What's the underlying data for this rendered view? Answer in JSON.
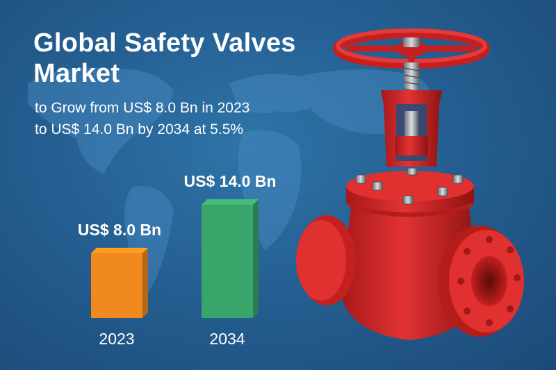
{
  "title_lines": [
    "Global Safety Valves",
    "Market"
  ],
  "subtitle_lines": [
    "to Grow from US$ 8.0 Bn in 2023",
    "to US$ 14.0 Bn by 2034 at 5.5%"
  ],
  "colors": {
    "background": "#255f92",
    "bar_2023": "#f0891e",
    "bar_2034": "#3aa56a",
    "valve": "#d42626",
    "text": "#ffffff"
  },
  "illustration": {
    "icon": "gate-valve-icon"
  },
  "chart_data": {
    "type": "bar",
    "title": "",
    "xlabel": "",
    "ylabel": "",
    "categories": [
      "2023",
      "2034"
    ],
    "values": [
      8.0,
      14.0
    ],
    "value_labels": [
      "US$ 8.0 Bn",
      "US$ 14.0 Bn"
    ],
    "unit": "US$ Bn",
    "ylim": [
      0,
      14.0
    ],
    "grid": false,
    "legend": "none"
  }
}
